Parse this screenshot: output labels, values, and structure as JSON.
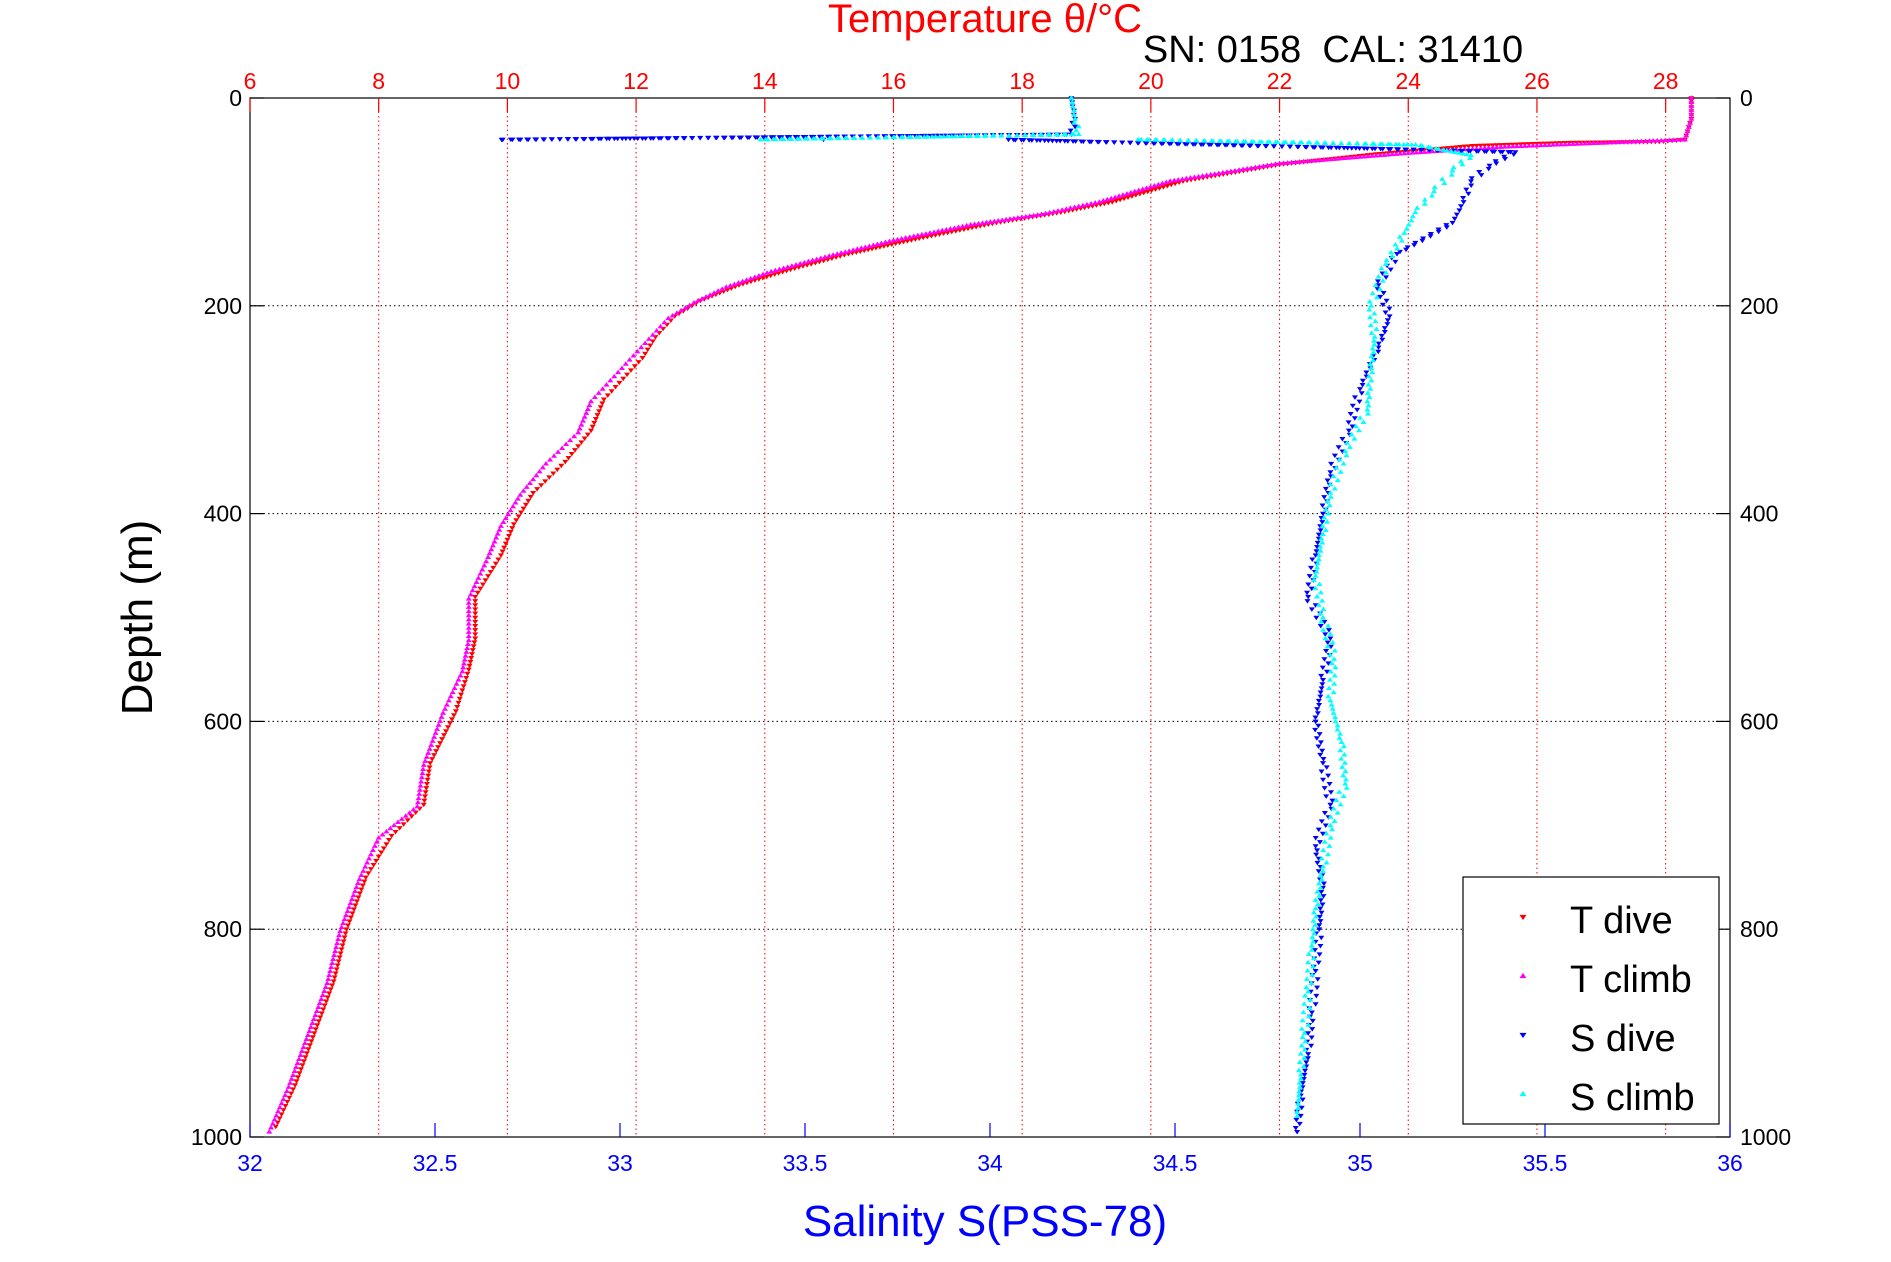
{
  "chart_data": {
    "type": "scatter",
    "title": "Temperature θ/°C",
    "subtitle": "SN: 0158  CAL: 31410",
    "ylabel": "Depth (m)",
    "xlabel_bottom": "Salinity S(PSS-78)",
    "xlabel_top": "Temperature θ/°C",
    "ylim": [
      1000,
      0
    ],
    "y_reversed": true,
    "y_ticks": [
      "0",
      "200",
      "400",
      "600",
      "800",
      "1000"
    ],
    "y_tick_values": [
      0,
      200,
      400,
      600,
      800,
      1000
    ],
    "top_axis": {
      "label": "Temperature θ/°C",
      "range": [
        6,
        29
      ],
      "ticks": [
        "6",
        "8",
        "10",
        "12",
        "14",
        "16",
        "18",
        "20",
        "22",
        "24",
        "26",
        "28"
      ],
      "tick_values": [
        6,
        8,
        10,
        12,
        14,
        16,
        18,
        20,
        22,
        24,
        26,
        28
      ],
      "color": "#ff0000"
    },
    "bottom_axis": {
      "label": "Salinity S(PSS-78)",
      "range": [
        32,
        36
      ],
      "ticks": [
        "32",
        "32.5",
        "33",
        "33.5",
        "34",
        "34.5",
        "35",
        "35.5",
        "36"
      ],
      "tick_values": [
        32,
        32.5,
        33,
        33.5,
        34,
        34.5,
        35,
        35.5,
        36
      ],
      "color": "#0000ff"
    },
    "grid": "vertical dotted at temperature ticks (red), horizontal dotted at depth ticks (black)",
    "legend": "bottom-right",
    "series": [
      {
        "name": "T dive",
        "axis": "temperature",
        "color": "#ff0000",
        "marker": "triangle-down",
        "points": [
          [
            28.4,
            0
          ],
          [
            28.4,
            5
          ],
          [
            28.4,
            20
          ],
          [
            28.3,
            40
          ],
          [
            27.9,
            42
          ],
          [
            26.5,
            43
          ],
          [
            25.0,
            46
          ],
          [
            23.5,
            54
          ],
          [
            22.0,
            64
          ],
          [
            20.5,
            80
          ],
          [
            19.4,
            100
          ],
          [
            18.6,
            110
          ],
          [
            17.6,
            120
          ],
          [
            16.4,
            135
          ],
          [
            15.3,
            150
          ],
          [
            14.4,
            165
          ],
          [
            13.6,
            180
          ],
          [
            13.0,
            195
          ],
          [
            12.6,
            210
          ],
          [
            12.3,
            230
          ],
          [
            12.1,
            250
          ],
          [
            11.8,
            270
          ],
          [
            11.5,
            290
          ],
          [
            11.3,
            320
          ],
          [
            10.9,
            350
          ],
          [
            10.4,
            380
          ],
          [
            10.1,
            410
          ],
          [
            9.9,
            440
          ],
          [
            9.5,
            480
          ],
          [
            9.5,
            520
          ],
          [
            9.4,
            550
          ],
          [
            9.2,
            590
          ],
          [
            8.8,
            640
          ],
          [
            8.7,
            680
          ],
          [
            8.2,
            710
          ],
          [
            7.8,
            750
          ],
          [
            7.5,
            800
          ],
          [
            7.3,
            850
          ],
          [
            7.0,
            900
          ],
          [
            6.7,
            950
          ],
          [
            6.4,
            990
          ]
        ]
      },
      {
        "name": "T climb",
        "axis": "temperature",
        "color": "#ff00ff",
        "marker": "triangle-up",
        "points": [
          [
            28.4,
            0
          ],
          [
            28.4,
            20
          ],
          [
            28.3,
            40
          ],
          [
            27.5,
            42
          ],
          [
            25.5,
            47
          ],
          [
            24.0,
            53
          ],
          [
            22.0,
            63
          ],
          [
            20.3,
            80
          ],
          [
            19.2,
            100
          ],
          [
            18.3,
            112
          ],
          [
            17.2,
            122
          ],
          [
            16.0,
            137
          ],
          [
            15.0,
            152
          ],
          [
            14.1,
            167
          ],
          [
            13.4,
            182
          ],
          [
            12.9,
            197
          ],
          [
            12.5,
            212
          ],
          [
            12.2,
            232
          ],
          [
            11.9,
            252
          ],
          [
            11.6,
            272
          ],
          [
            11.3,
            292
          ],
          [
            11.1,
            322
          ],
          [
            10.6,
            352
          ],
          [
            10.2,
            382
          ],
          [
            9.9,
            412
          ],
          [
            9.7,
            442
          ],
          [
            9.4,
            482
          ],
          [
            9.4,
            522
          ],
          [
            9.3,
            552
          ],
          [
            9.0,
            592
          ],
          [
            8.7,
            642
          ],
          [
            8.6,
            682
          ],
          [
            8.0,
            712
          ],
          [
            7.7,
            752
          ],
          [
            7.4,
            802
          ],
          [
            7.2,
            852
          ],
          [
            6.9,
            902
          ],
          [
            6.6,
            952
          ],
          [
            6.3,
            995
          ]
        ]
      },
      {
        "name": "S dive",
        "axis": "salinity",
        "color": "#0000ff",
        "marker": "triangle-down",
        "points": [
          [
            34.22,
            0
          ],
          [
            34.23,
            20
          ],
          [
            34.22,
            35
          ],
          [
            32.68,
            40
          ],
          [
            33.55,
            40
          ],
          [
            34.05,
            40
          ],
          [
            35.42,
            52
          ],
          [
            35.35,
            65
          ],
          [
            35.3,
            80
          ],
          [
            35.28,
            100
          ],
          [
            35.25,
            120
          ],
          [
            35.1,
            150
          ],
          [
            35.05,
            180
          ],
          [
            35.08,
            210
          ],
          [
            35.05,
            240
          ],
          [
            35.0,
            280
          ],
          [
            34.97,
            320
          ],
          [
            34.92,
            360
          ],
          [
            34.9,
            400
          ],
          [
            34.88,
            440
          ],
          [
            34.86,
            480
          ],
          [
            34.92,
            520
          ],
          [
            34.9,
            560
          ],
          [
            34.88,
            600
          ],
          [
            34.9,
            640
          ],
          [
            34.92,
            680
          ],
          [
            34.88,
            720
          ],
          [
            34.9,
            760
          ],
          [
            34.89,
            800
          ],
          [
            34.88,
            840
          ],
          [
            34.87,
            880
          ],
          [
            34.86,
            920
          ],
          [
            34.84,
            960
          ],
          [
            34.83,
            995
          ]
        ]
      },
      {
        "name": "S climb",
        "axis": "salinity",
        "color": "#00ffff",
        "marker": "triangle-up",
        "points": [
          [
            34.22,
            0
          ],
          [
            34.23,
            20
          ],
          [
            34.24,
            35
          ],
          [
            33.38,
            40
          ],
          [
            34.4,
            40
          ],
          [
            35.15,
            45
          ],
          [
            35.3,
            55
          ],
          [
            35.25,
            70
          ],
          [
            35.2,
            90
          ],
          [
            35.15,
            110
          ],
          [
            35.12,
            130
          ],
          [
            35.07,
            160
          ],
          [
            35.03,
            200
          ],
          [
            35.04,
            230
          ],
          [
            35.03,
            260
          ],
          [
            35.02,
            300
          ],
          [
            34.96,
            340
          ],
          [
            34.92,
            380
          ],
          [
            34.9,
            420
          ],
          [
            34.88,
            460
          ],
          [
            34.9,
            500
          ],
          [
            34.93,
            540
          ],
          [
            34.92,
            580
          ],
          [
            34.95,
            620
          ],
          [
            34.96,
            660
          ],
          [
            34.92,
            700
          ],
          [
            34.9,
            740
          ],
          [
            34.88,
            780
          ],
          [
            34.87,
            820
          ],
          [
            34.86,
            860
          ],
          [
            34.85,
            900
          ],
          [
            34.84,
            940
          ],
          [
            34.83,
            980
          ]
        ]
      }
    ]
  }
}
